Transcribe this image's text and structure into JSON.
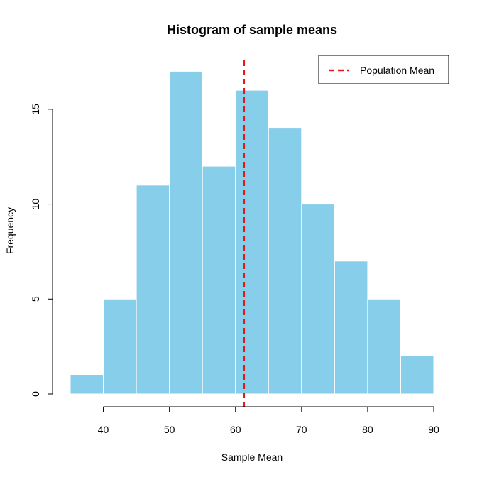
{
  "chart_data": {
    "type": "histogram",
    "title": "Histogram of sample means",
    "xlabel": "Sample Mean",
    "ylabel": "Frequency",
    "bins": [
      {
        "from": 35,
        "to": 40,
        "count": 1
      },
      {
        "from": 40,
        "to": 45,
        "count": 5
      },
      {
        "from": 45,
        "to": 50,
        "count": 11
      },
      {
        "from": 50,
        "to": 55,
        "count": 17
      },
      {
        "from": 55,
        "to": 60,
        "count": 12
      },
      {
        "from": 60,
        "to": 65,
        "count": 16
      },
      {
        "from": 65,
        "to": 70,
        "count": 14
      },
      {
        "from": 70,
        "to": 75,
        "count": 10
      },
      {
        "from": 75,
        "to": 80,
        "count": 7
      },
      {
        "from": 80,
        "to": 85,
        "count": 5
      },
      {
        "from": 85,
        "to": 90,
        "count": 2
      }
    ],
    "x_ticks": [
      40,
      50,
      60,
      70,
      80,
      90
    ],
    "y_ticks": [
      0,
      5,
      10,
      15
    ],
    "xlim": [
      35,
      90
    ],
    "ylim": [
      0,
      17.5
    ],
    "reference_line": {
      "x": 61.3,
      "label": "Population Mean",
      "color": "#e31a1c",
      "style": "dashed"
    },
    "legend": {
      "position": "top-right",
      "entries": [
        "Population Mean"
      ]
    },
    "colors": {
      "bar_fill": "#87ceeb",
      "bar_border": "#ffffff",
      "mean_line": "#e31a1c"
    },
    "grid": false
  }
}
